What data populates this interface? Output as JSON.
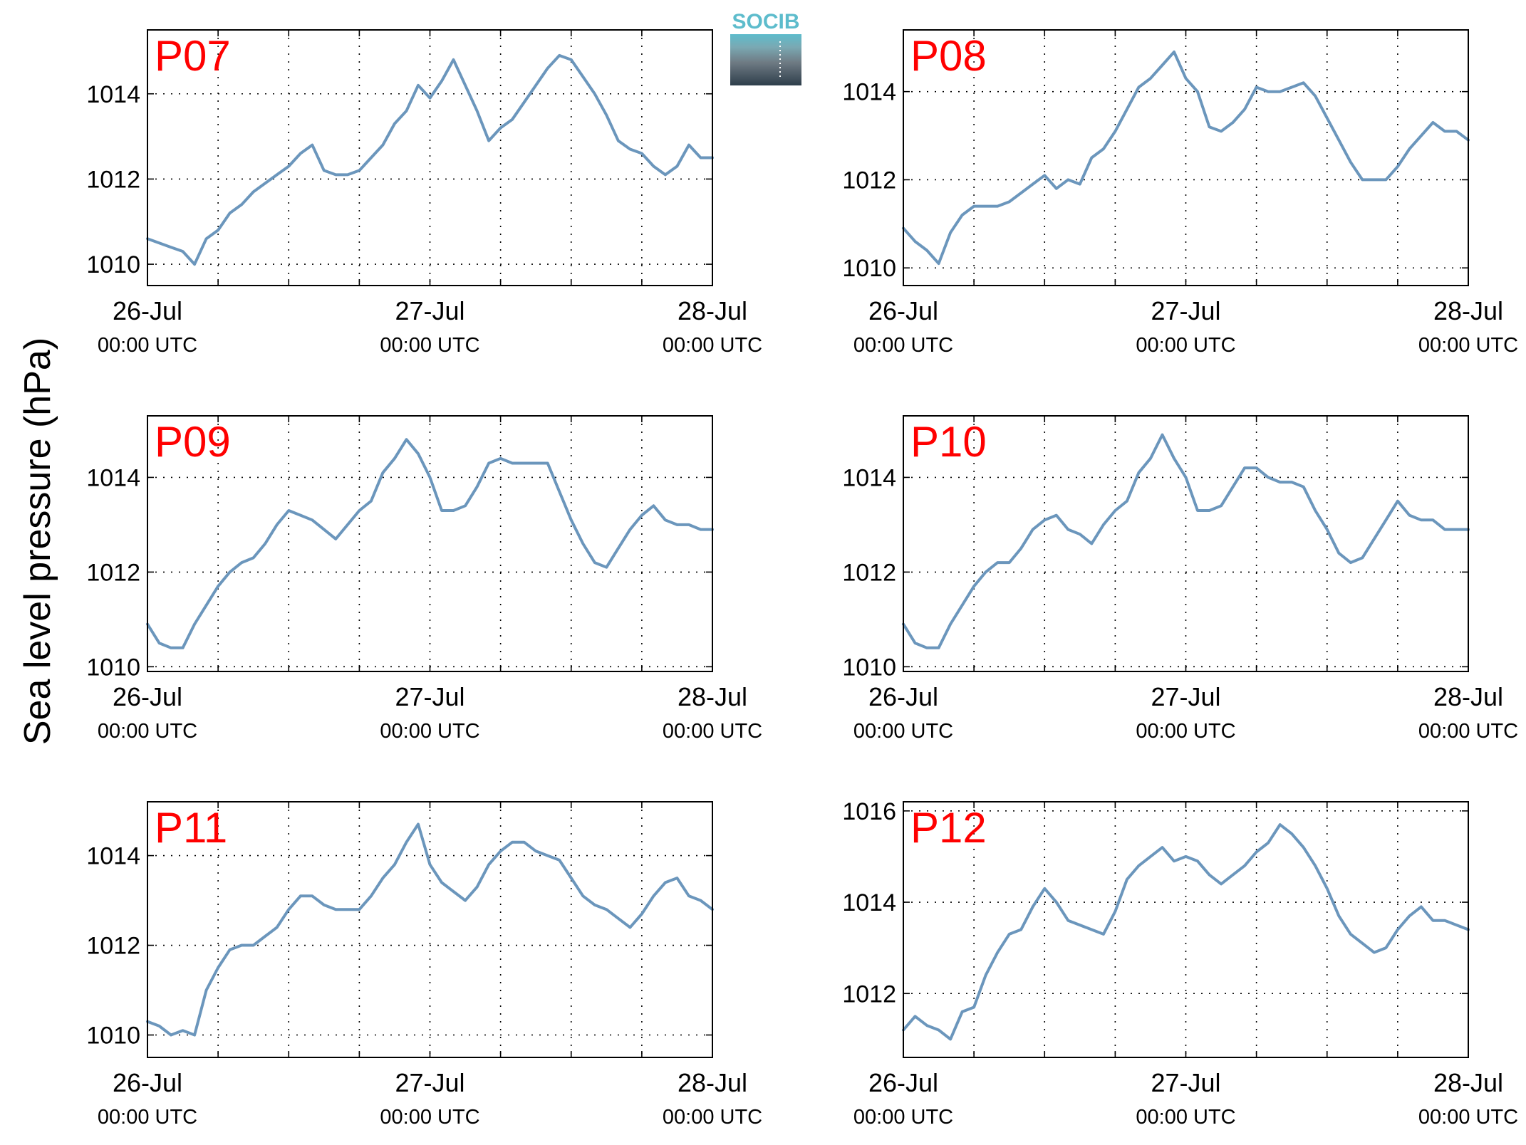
{
  "figure": {
    "ylabel": "Sea level pressure (hPa)",
    "logo_text": "SOCIB",
    "colors": {
      "line": "#6b96bc",
      "panel_label": "#ff0000",
      "axis": "#000000",
      "grid": "#000000",
      "logo_teal": "#5dbccc",
      "logo_dark": "#2e3e4b"
    }
  },
  "chart_data": [
    {
      "type": "line",
      "panel_label": "P07",
      "x_ticks": [
        {
          "day": 0,
          "date": "26-Jul",
          "time": "00:00 UTC"
        },
        {
          "day": 1,
          "date": "27-Jul",
          "time": "00:00 UTC"
        },
        {
          "day": 2,
          "date": "28-Jul",
          "time": "00:00 UTC"
        }
      ],
      "xlim_days": [
        0,
        2
      ],
      "grid_step_hours": 6,
      "y_ticks": [
        1010,
        1012,
        1014
      ],
      "ylim": [
        1009.5,
        1015.5
      ],
      "grid": true,
      "series": [
        {
          "t_hours": [
            0,
            1,
            2,
            3,
            4,
            5,
            6,
            7,
            8,
            9,
            10,
            11,
            12,
            13,
            14,
            15,
            16,
            17,
            18,
            19,
            20,
            21,
            22,
            23,
            24,
            25,
            26,
            27,
            28,
            29,
            30,
            31,
            32,
            33,
            34,
            35,
            36,
            37,
            38,
            39,
            40,
            41,
            42,
            43,
            44,
            45,
            46,
            47,
            48
          ],
          "values": [
            1010.6,
            1010.5,
            1010.4,
            1010.3,
            1010.0,
            1010.6,
            1010.8,
            1011.2,
            1011.4,
            1011.7,
            1011.9,
            1012.1,
            1012.3,
            1012.6,
            1012.8,
            1012.2,
            1012.1,
            1012.1,
            1012.2,
            1012.5,
            1012.8,
            1013.3,
            1013.6,
            1014.2,
            1013.9,
            1014.3,
            1014.8,
            1014.2,
            1013.6,
            1012.9,
            1013.2,
            1013.4,
            1013.8,
            1014.2,
            1014.6,
            1014.9,
            1014.8,
            1014.4,
            1014.0,
            1013.5,
            1012.9,
            1012.7,
            1012.6,
            1012.3,
            1012.1,
            1012.3,
            1012.8,
            1012.5,
            1012.5
          ]
        }
      ]
    },
    {
      "type": "line",
      "panel_label": "P08",
      "x_ticks": [
        {
          "day": 0,
          "date": "26-Jul",
          "time": "00:00 UTC"
        },
        {
          "day": 1,
          "date": "27-Jul",
          "time": "00:00 UTC"
        },
        {
          "day": 2,
          "date": "28-Jul",
          "time": "00:00 UTC"
        }
      ],
      "xlim_days": [
        0,
        2
      ],
      "grid_step_hours": 6,
      "y_ticks": [
        1010,
        1012,
        1014
      ],
      "ylim": [
        1009.6,
        1015.4
      ],
      "grid": true,
      "series": [
        {
          "t_hours": [
            0,
            1,
            2,
            3,
            4,
            5,
            6,
            7,
            8,
            9,
            10,
            11,
            12,
            13,
            14,
            15,
            16,
            17,
            18,
            19,
            20,
            21,
            22,
            23,
            24,
            25,
            26,
            27,
            28,
            29,
            30,
            31,
            32,
            33,
            34,
            35,
            36,
            37,
            38,
            39,
            40,
            41,
            42,
            43,
            44,
            45,
            46,
            47,
            48
          ],
          "values": [
            1010.9,
            1010.6,
            1010.4,
            1010.1,
            1010.8,
            1011.2,
            1011.4,
            1011.4,
            1011.4,
            1011.5,
            1011.7,
            1011.9,
            1012.1,
            1011.8,
            1012.0,
            1011.9,
            1012.5,
            1012.7,
            1013.1,
            1013.6,
            1014.1,
            1014.3,
            1014.6,
            1014.9,
            1014.3,
            1014.0,
            1013.2,
            1013.1,
            1013.3,
            1013.6,
            1014.1,
            1014.0,
            1014.0,
            1014.1,
            1014.2,
            1013.9,
            1013.4,
            1012.9,
            1012.4,
            1012.0,
            1012.0,
            1012.0,
            1012.3,
            1012.7,
            1013.0,
            1013.3,
            1013.1,
            1013.1,
            1012.9
          ]
        }
      ]
    },
    {
      "type": "line",
      "panel_label": "P09",
      "x_ticks": [
        {
          "day": 0,
          "date": "26-Jul",
          "time": "00:00 UTC"
        },
        {
          "day": 1,
          "date": "27-Jul",
          "time": "00:00 UTC"
        },
        {
          "day": 2,
          "date": "28-Jul",
          "time": "00:00 UTC"
        }
      ],
      "xlim_days": [
        0,
        2
      ],
      "grid_step_hours": 6,
      "y_ticks": [
        1010,
        1012,
        1014
      ],
      "ylim": [
        1009.9,
        1015.3
      ],
      "grid": true,
      "series": [
        {
          "t_hours": [
            0,
            1,
            2,
            3,
            4,
            5,
            6,
            7,
            8,
            9,
            10,
            11,
            12,
            13,
            14,
            15,
            16,
            17,
            18,
            19,
            20,
            21,
            22,
            23,
            24,
            25,
            26,
            27,
            28,
            29,
            30,
            31,
            32,
            33,
            34,
            35,
            36,
            37,
            38,
            39,
            40,
            41,
            42,
            43,
            44,
            45,
            46,
            47,
            48
          ],
          "values": [
            1010.9,
            1010.5,
            1010.4,
            1010.4,
            1010.9,
            1011.3,
            1011.7,
            1012.0,
            1012.2,
            1012.3,
            1012.6,
            1013.0,
            1013.3,
            1013.2,
            1013.1,
            1012.9,
            1012.7,
            1013.0,
            1013.3,
            1013.5,
            1014.1,
            1014.4,
            1014.8,
            1014.5,
            1014.0,
            1013.3,
            1013.3,
            1013.4,
            1013.8,
            1014.3,
            1014.4,
            1014.3,
            1014.3,
            1014.3,
            1014.3,
            1013.7,
            1013.1,
            1012.6,
            1012.2,
            1012.1,
            1012.5,
            1012.9,
            1013.2,
            1013.4,
            1013.1,
            1013.0,
            1013.0,
            1012.9,
            1012.9
          ]
        }
      ]
    },
    {
      "type": "line",
      "panel_label": "P10",
      "x_ticks": [
        {
          "day": 0,
          "date": "26-Jul",
          "time": "00:00 UTC"
        },
        {
          "day": 1,
          "date": "27-Jul",
          "time": "00:00 UTC"
        },
        {
          "day": 2,
          "date": "28-Jul",
          "time": "00:00 UTC"
        }
      ],
      "xlim_days": [
        0,
        2
      ],
      "grid_step_hours": 6,
      "y_ticks": [
        1010,
        1012,
        1014
      ],
      "ylim": [
        1009.9,
        1015.3
      ],
      "grid": true,
      "series": [
        {
          "t_hours": [
            0,
            1,
            2,
            3,
            4,
            5,
            6,
            7,
            8,
            9,
            10,
            11,
            12,
            13,
            14,
            15,
            16,
            17,
            18,
            19,
            20,
            21,
            22,
            23,
            24,
            25,
            26,
            27,
            28,
            29,
            30,
            31,
            32,
            33,
            34,
            35,
            36,
            37,
            38,
            39,
            40,
            41,
            42,
            43,
            44,
            45,
            46,
            47,
            48
          ],
          "values": [
            1010.9,
            1010.5,
            1010.4,
            1010.4,
            1010.9,
            1011.3,
            1011.7,
            1012.0,
            1012.2,
            1012.2,
            1012.5,
            1012.9,
            1013.1,
            1013.2,
            1012.9,
            1012.8,
            1012.6,
            1013.0,
            1013.3,
            1013.5,
            1014.1,
            1014.4,
            1014.9,
            1014.4,
            1014.0,
            1013.3,
            1013.3,
            1013.4,
            1013.8,
            1014.2,
            1014.2,
            1014.0,
            1013.9,
            1013.9,
            1013.8,
            1013.3,
            1012.9,
            1012.4,
            1012.2,
            1012.3,
            1012.7,
            1013.1,
            1013.5,
            1013.2,
            1013.1,
            1013.1,
            1012.9,
            1012.9,
            1012.9
          ]
        }
      ]
    },
    {
      "type": "line",
      "panel_label": "P11",
      "x_ticks": [
        {
          "day": 0,
          "date": "26-Jul",
          "time": "00:00 UTC"
        },
        {
          "day": 1,
          "date": "27-Jul",
          "time": "00:00 UTC"
        },
        {
          "day": 2,
          "date": "28-Jul",
          "time": "00:00 UTC"
        }
      ],
      "xlim_days": [
        0,
        2
      ],
      "grid_step_hours": 6,
      "y_ticks": [
        1010,
        1012,
        1014
      ],
      "ylim": [
        1009.5,
        1015.2
      ],
      "grid": true,
      "series": [
        {
          "t_hours": [
            0,
            1,
            2,
            3,
            4,
            5,
            6,
            7,
            8,
            9,
            10,
            11,
            12,
            13,
            14,
            15,
            16,
            17,
            18,
            19,
            20,
            21,
            22,
            23,
            24,
            25,
            26,
            27,
            28,
            29,
            30,
            31,
            32,
            33,
            34,
            35,
            36,
            37,
            38,
            39,
            40,
            41,
            42,
            43,
            44,
            45,
            46,
            47,
            48
          ],
          "values": [
            1010.3,
            1010.2,
            1010.0,
            1010.1,
            1010.0,
            1011.0,
            1011.5,
            1011.9,
            1012.0,
            1012.0,
            1012.2,
            1012.4,
            1012.8,
            1013.1,
            1013.1,
            1012.9,
            1012.8,
            1012.8,
            1012.8,
            1013.1,
            1013.5,
            1013.8,
            1014.3,
            1014.7,
            1013.8,
            1013.4,
            1013.2,
            1013.0,
            1013.3,
            1013.8,
            1014.1,
            1014.3,
            1014.3,
            1014.1,
            1014.0,
            1013.9,
            1013.5,
            1013.1,
            1012.9,
            1012.8,
            1012.6,
            1012.4,
            1012.7,
            1013.1,
            1013.4,
            1013.5,
            1013.1,
            1013.0,
            1012.8
          ]
        }
      ]
    },
    {
      "type": "line",
      "panel_label": "P12",
      "x_ticks": [
        {
          "day": 0,
          "date": "26-Jul",
          "time": "00:00 UTC"
        },
        {
          "day": 1,
          "date": "27-Jul",
          "time": "00:00 UTC"
        },
        {
          "day": 2,
          "date": "28-Jul",
          "time": "00:00 UTC"
        }
      ],
      "xlim_days": [
        0,
        2
      ],
      "grid_step_hours": 6,
      "y_ticks": [
        1012,
        1014,
        1016
      ],
      "ylim": [
        1010.6,
        1016.2
      ],
      "grid": true,
      "series": [
        {
          "t_hours": [
            0,
            1,
            2,
            3,
            4,
            5,
            6,
            7,
            8,
            9,
            10,
            11,
            12,
            13,
            14,
            15,
            16,
            17,
            18,
            19,
            20,
            21,
            22,
            23,
            24,
            25,
            26,
            27,
            28,
            29,
            30,
            31,
            32,
            33,
            34,
            35,
            36,
            37,
            38,
            39,
            40,
            41,
            42,
            43,
            44,
            45,
            46,
            47,
            48
          ],
          "values": [
            1011.2,
            1011.5,
            1011.3,
            1011.2,
            1011.0,
            1011.6,
            1011.7,
            1012.4,
            1012.9,
            1013.3,
            1013.4,
            1013.9,
            1014.3,
            1014.0,
            1013.6,
            1013.5,
            1013.4,
            1013.3,
            1013.8,
            1014.5,
            1014.8,
            1015.0,
            1015.2,
            1014.9,
            1015.0,
            1014.9,
            1014.6,
            1014.4,
            1014.6,
            1014.8,
            1015.1,
            1015.3,
            1015.7,
            1015.5,
            1015.2,
            1014.8,
            1014.3,
            1013.7,
            1013.3,
            1013.1,
            1012.9,
            1013.0,
            1013.4,
            1013.7,
            1013.9,
            1013.6,
            1013.6,
            1013.5,
            1013.4
          ]
        }
      ]
    }
  ]
}
